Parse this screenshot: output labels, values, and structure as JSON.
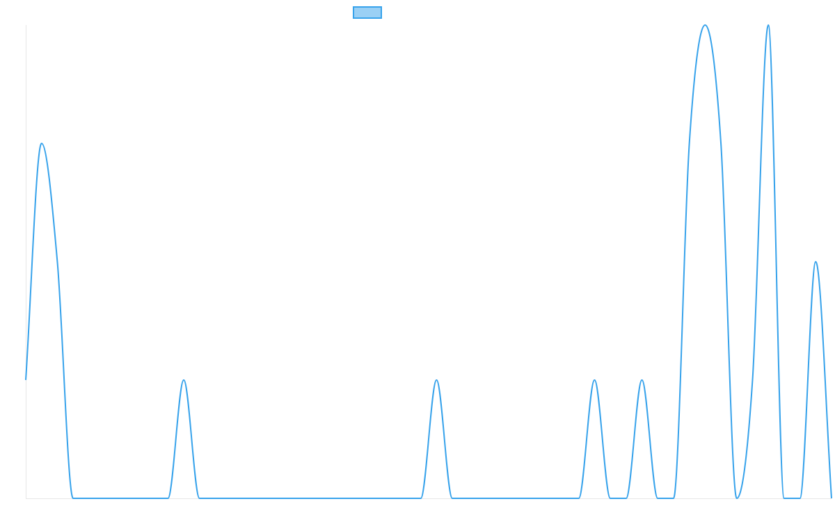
{
  "chart_data": {
    "type": "line",
    "title": "",
    "xlabel": "",
    "ylabel": "",
    "grid": false,
    "legend": {
      "position": "top-center",
      "entries": [
        ""
      ]
    },
    "colors": {
      "line": "#36A2EB",
      "legend_fill": "#9AD0F5",
      "axis": "#E6E6E6"
    },
    "ylim": [
      0,
      4
    ],
    "x": [
      0,
      1,
      2,
      3,
      4,
      5,
      6,
      7,
      8,
      9,
      10,
      11,
      12,
      13,
      14,
      15,
      16,
      17,
      18,
      19,
      20,
      21,
      22,
      23,
      24,
      25,
      26,
      27,
      28,
      29,
      30,
      31,
      32,
      33,
      34,
      35,
      36,
      37,
      38,
      39,
      40,
      41,
      42,
      43,
      44,
      45,
      46,
      47,
      48,
      49,
      50,
      51
    ],
    "series": [
      {
        "values": [
          1,
          3,
          2,
          0,
          0,
          0,
          0,
          0,
          0,
          0,
          1,
          0,
          0,
          0,
          0,
          0,
          0,
          0,
          0,
          0,
          0,
          0,
          0,
          0,
          0,
          0,
          1,
          0,
          0,
          0,
          0,
          0,
          0,
          0,
          0,
          0,
          1,
          0,
          0,
          1,
          0,
          0,
          3,
          4,
          3,
          0,
          1,
          4,
          0,
          0,
          2,
          0
        ]
      }
    ]
  }
}
